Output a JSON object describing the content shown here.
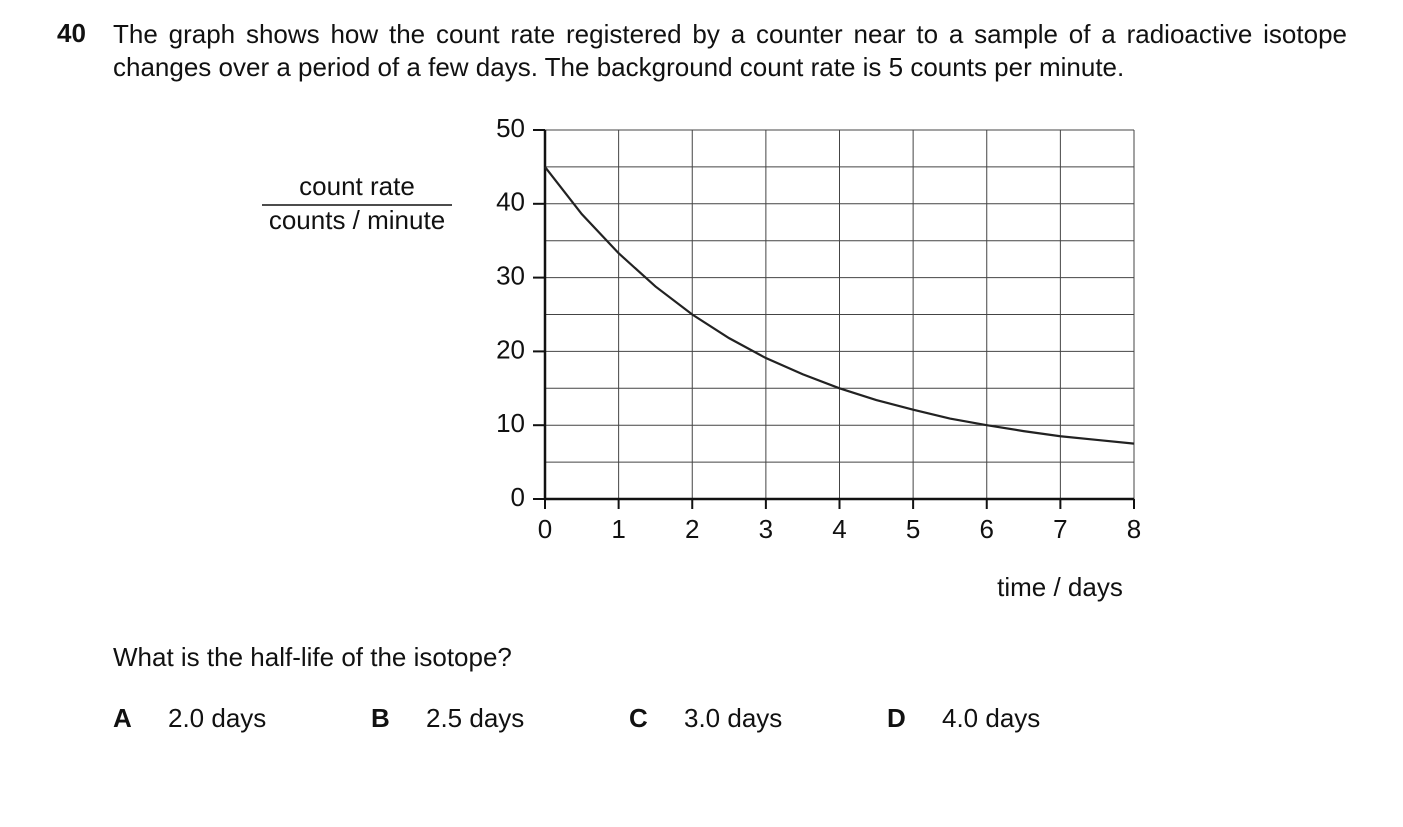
{
  "question": {
    "number": "40",
    "text": "The graph shows how the count rate registered by a counter near to a sample of a radioactive isotope changes over a period of a few days. The background count rate is 5 counts per minute.",
    "prompt": "What is the half-life of the isotope?",
    "options": [
      {
        "letter": "A",
        "text": "2.0 days"
      },
      {
        "letter": "B",
        "text": "2.5 days"
      },
      {
        "letter": "C",
        "text": "3.0 days"
      },
      {
        "letter": "D",
        "text": "4.0 days"
      }
    ]
  },
  "chart_data": {
    "type": "line",
    "ylabel_top": "count rate",
    "ylabel_bottom": "counts / minute",
    "xlabel": "time / days",
    "x": [
      0,
      0.5,
      1,
      1.5,
      2,
      2.5,
      3,
      3.5,
      4,
      4.5,
      5,
      5.5,
      6,
      6.5,
      7,
      7.5,
      8
    ],
    "values": [
      45,
      38.6,
      33.3,
      28.8,
      25,
      21.8,
      19.1,
      16.9,
      15,
      13.4,
      12.1,
      10.9,
      10,
      9.2,
      8.5,
      8.0,
      7.5
    ],
    "color": "#222222",
    "xlim": [
      0,
      8
    ],
    "ylim": [
      0,
      50
    ],
    "xticks": [
      0,
      1,
      2,
      3,
      4,
      5,
      6,
      7,
      8
    ],
    "yticks": [
      0,
      10,
      20,
      30,
      40,
      50
    ],
    "ygrid": [
      0,
      5,
      10,
      15,
      20,
      25,
      30,
      35,
      40,
      45,
      50
    ],
    "grid": true
  }
}
